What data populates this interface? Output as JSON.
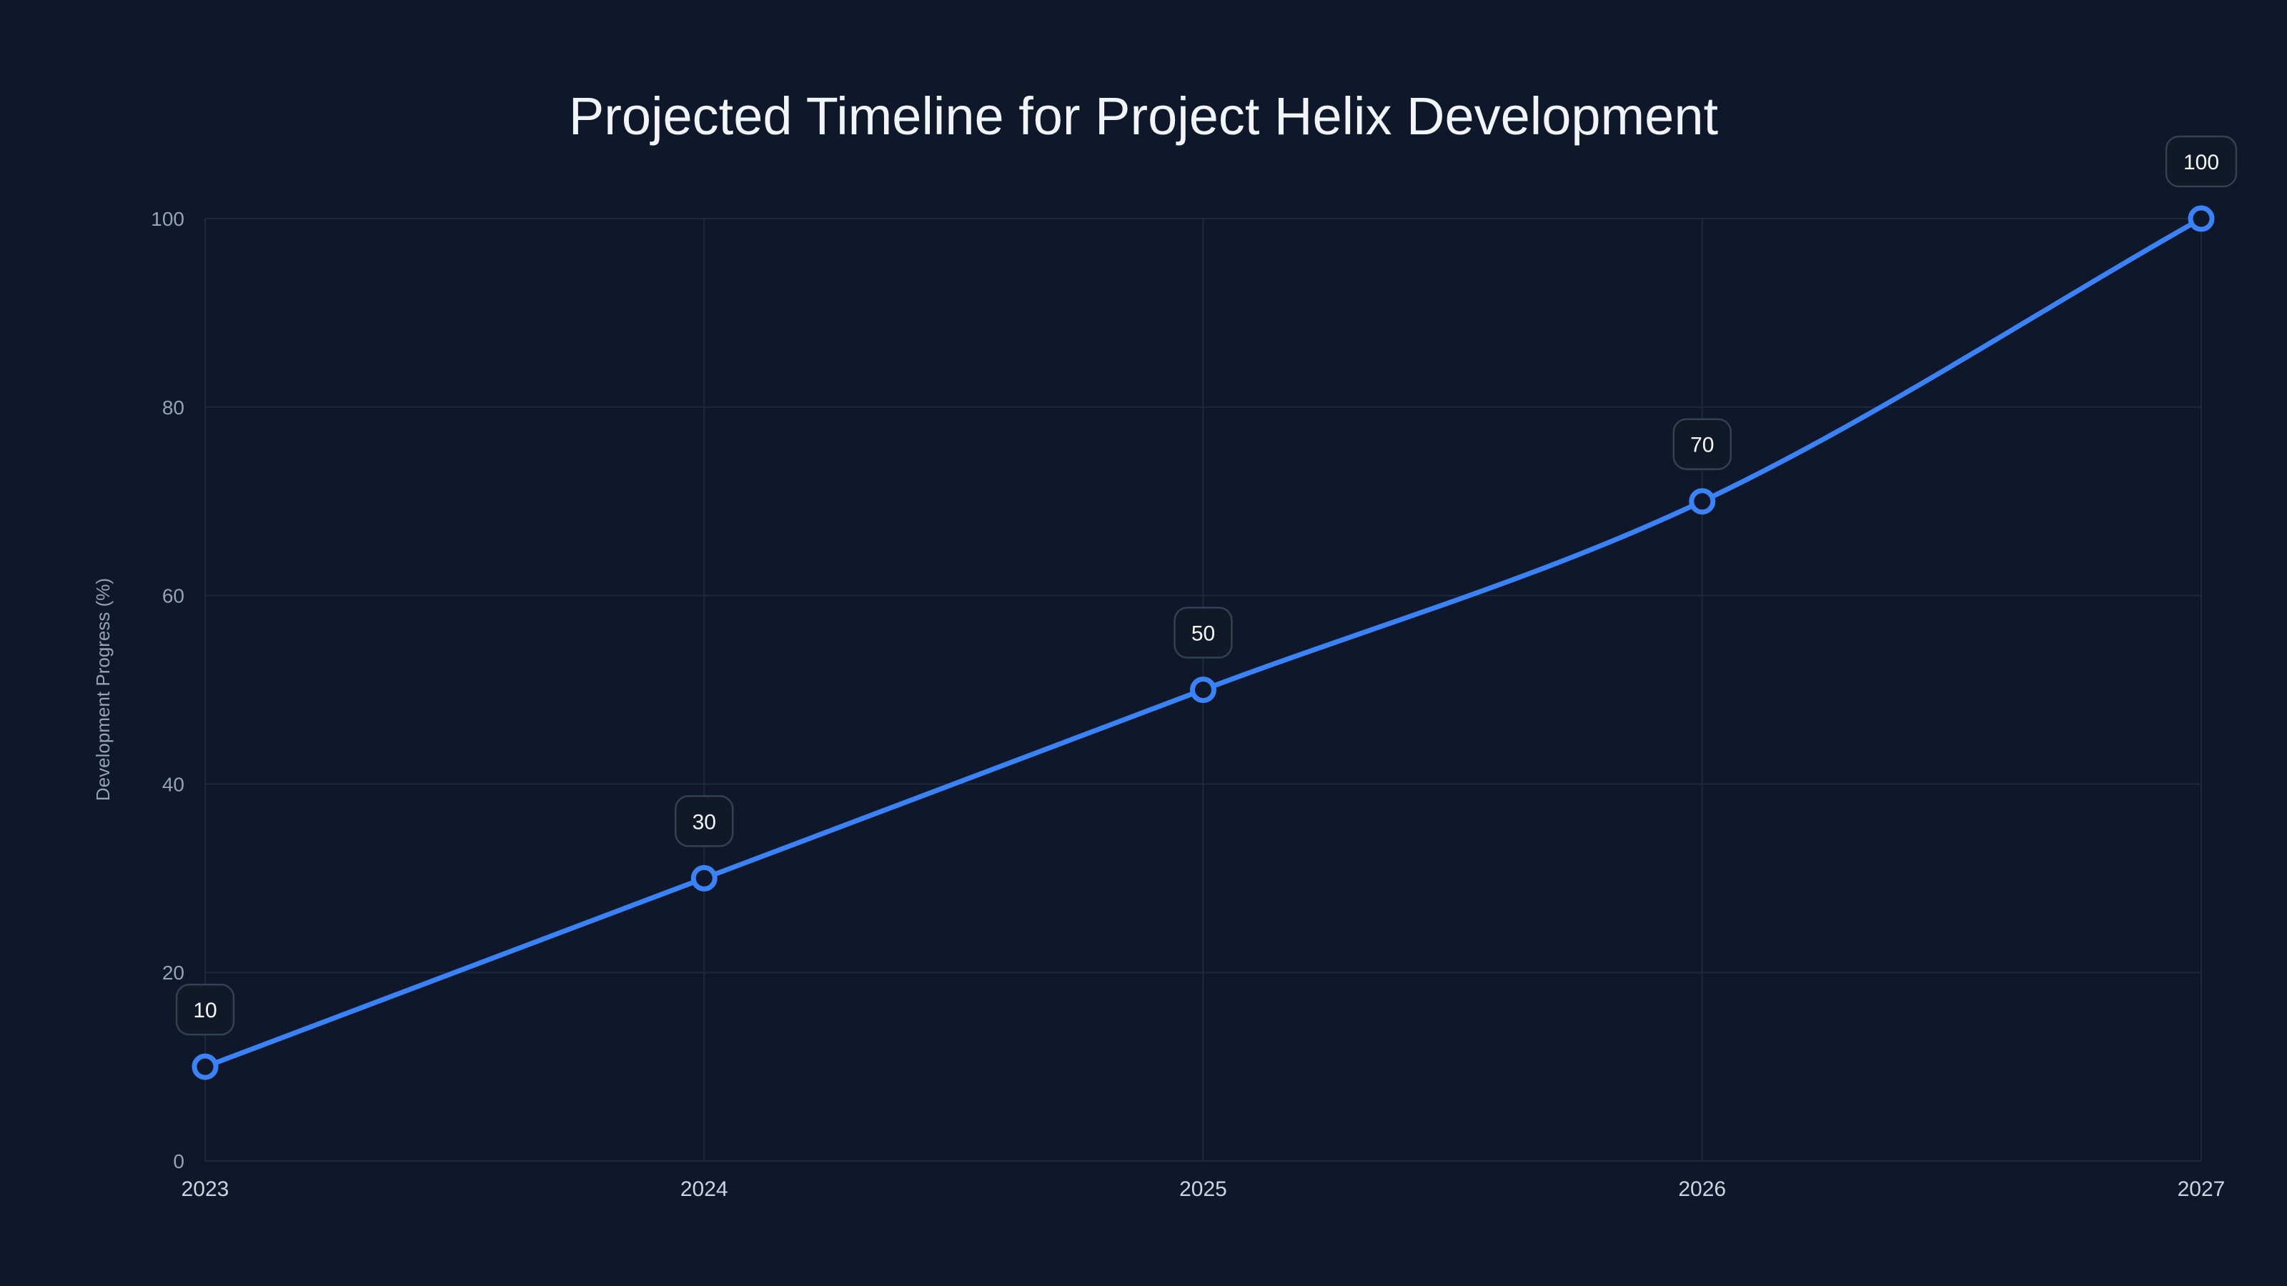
{
  "chart_data": {
    "type": "line",
    "title": "Projected Timeline for Project Helix Development",
    "xlabel": "",
    "ylabel": "Development Progress (%)",
    "categories": [
      "2023",
      "2024",
      "2025",
      "2026",
      "2027"
    ],
    "series": [
      {
        "name": "Development Progress",
        "values": [
          10,
          30,
          50,
          70,
          100
        ],
        "color": "#3b82f6"
      }
    ],
    "data_labels": [
      "10",
      "30",
      "50",
      "70",
      "100"
    ],
    "ylim": [
      0,
      100
    ],
    "yticks": [
      "0",
      "20",
      "40",
      "60",
      "80",
      "100"
    ],
    "grid": true,
    "legend": "none",
    "smooth": true
  },
  "colors": {
    "background": "#0f172a",
    "line": "#3b82f6",
    "grid": "#1e293b",
    "axis_text": "#94a3b8",
    "title_text": "#f1f5f9"
  }
}
